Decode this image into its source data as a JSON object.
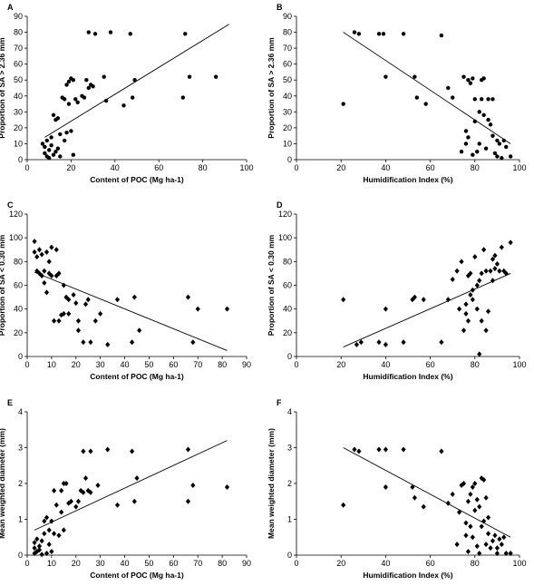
{
  "chart_data": [
    {
      "panel": "A",
      "type": "scatter",
      "xlabel": "Content of POC (Mg ha-1)",
      "ylabel": "Proportion of SA > 2.36 mm",
      "xlim": [
        0,
        100
      ],
      "ylim": [
        0,
        90
      ],
      "xticks": [
        0,
        20,
        40,
        60,
        80,
        100
      ],
      "yticks": [
        0,
        10,
        20,
        30,
        40,
        50,
        60,
        70,
        80,
        90
      ],
      "trendline": [
        [
          8,
          14
        ],
        [
          92,
          85
        ]
      ],
      "points": [
        [
          7,
          10
        ],
        [
          8,
          4
        ],
        [
          8,
          8
        ],
        [
          9,
          2
        ],
        [
          9,
          12
        ],
        [
          10,
          6
        ],
        [
          10,
          1
        ],
        [
          11,
          14
        ],
        [
          11,
          9
        ],
        [
          12,
          28
        ],
        [
          12,
          3
        ],
        [
          13,
          25
        ],
        [
          13,
          5
        ],
        [
          14,
          26
        ],
        [
          14,
          7
        ],
        [
          15,
          16
        ],
        [
          15,
          2
        ],
        [
          16,
          39
        ],
        [
          17,
          12
        ],
        [
          17,
          38
        ],
        [
          18,
          17
        ],
        [
          18,
          47
        ],
        [
          19,
          49
        ],
        [
          19,
          35
        ],
        [
          20,
          51
        ],
        [
          20,
          18
        ],
        [
          21,
          50
        ],
        [
          21,
          3
        ],
        [
          22,
          38
        ],
        [
          23,
          36
        ],
        [
          25,
          40
        ],
        [
          26,
          39
        ],
        [
          27,
          50
        ],
        [
          28,
          45
        ],
        [
          28,
          80
        ],
        [
          29,
          47
        ],
        [
          30,
          46
        ],
        [
          31,
          79
        ],
        [
          35,
          52
        ],
        [
          36,
          37
        ],
        [
          38,
          80
        ],
        [
          44,
          34
        ],
        [
          47,
          79
        ],
        [
          48,
          39
        ],
        [
          49,
          50
        ],
        [
          71,
          39
        ],
        [
          72,
          79
        ],
        [
          74,
          52
        ],
        [
          86,
          52
        ]
      ],
      "marker": "circle"
    },
    {
      "panel": "B",
      "type": "scatter",
      "xlabel": "Humidification Index (%)",
      "ylabel": "Proportion of SA > 2.36 mm",
      "xlim": [
        0,
        100
      ],
      "ylim": [
        0,
        90
      ],
      "xticks": [
        0,
        20,
        40,
        60,
        80,
        100
      ],
      "yticks": [
        0,
        10,
        20,
        30,
        40,
        50,
        60,
        70,
        80,
        90
      ],
      "trendline": [
        [
          21,
          80
        ],
        [
          96,
          10
        ]
      ],
      "points": [
        [
          21,
          35
        ],
        [
          26,
          80
        ],
        [
          28,
          79
        ],
        [
          37,
          79
        ],
        [
          39,
          79
        ],
        [
          40,
          52
        ],
        [
          48,
          79
        ],
        [
          53,
          52
        ],
        [
          54,
          39
        ],
        [
          58,
          35
        ],
        [
          65,
          78
        ],
        [
          68,
          45
        ],
        [
          70,
          39
        ],
        [
          74,
          5
        ],
        [
          75,
          52
        ],
        [
          76,
          18
        ],
        [
          76,
          10
        ],
        [
          77,
          50
        ],
        [
          77,
          14
        ],
        [
          78,
          48
        ],
        [
          79,
          51
        ],
        [
          79,
          3
        ],
        [
          80,
          24
        ],
        [
          80,
          38
        ],
        [
          81,
          5
        ],
        [
          82,
          10
        ],
        [
          82,
          30
        ],
        [
          83,
          50
        ],
        [
          83,
          38
        ],
        [
          84,
          51
        ],
        [
          84,
          28
        ],
        [
          85,
          7
        ],
        [
          86,
          25
        ],
        [
          86,
          38
        ],
        [
          87,
          22
        ],
        [
          88,
          15
        ],
        [
          88,
          38
        ],
        [
          89,
          4
        ],
        [
          90,
          12
        ],
        [
          90,
          2
        ],
        [
          91,
          10
        ],
        [
          92,
          1
        ],
        [
          93,
          12
        ],
        [
          94,
          8
        ],
        [
          96,
          2
        ]
      ],
      "marker": "circle"
    },
    {
      "panel": "C",
      "type": "scatter",
      "xlabel": "Content of POC (Mg ha-1)",
      "ylabel": "Proportion of SA < 0.30 mm",
      "xlim": [
        0,
        90
      ],
      "ylim": [
        0,
        120
      ],
      "xticks": [
        0,
        10,
        20,
        30,
        40,
        50,
        60,
        70,
        80,
        90
      ],
      "yticks": [
        0,
        20,
        40,
        60,
        80,
        100,
        120
      ],
      "trendline": [
        [
          3,
          71
        ],
        [
          82,
          5
        ]
      ],
      "points": [
        [
          3,
          97
        ],
        [
          3,
          88
        ],
        [
          4,
          72
        ],
        [
          4,
          84
        ],
        [
          5,
          70
        ],
        [
          5,
          90
        ],
        [
          6,
          86
        ],
        [
          6,
          68
        ],
        [
          7,
          72
        ],
        [
          7,
          62
        ],
        [
          8,
          88
        ],
        [
          8,
          54
        ],
        [
          9,
          80
        ],
        [
          9,
          70
        ],
        [
          10,
          68
        ],
        [
          10,
          92
        ],
        [
          11,
          30
        ],
        [
          12,
          90
        ],
        [
          12,
          68
        ],
        [
          13,
          70
        ],
        [
          13,
          30
        ],
        [
          14,
          35
        ],
        [
          15,
          60
        ],
        [
          15,
          36
        ],
        [
          16,
          50
        ],
        [
          17,
          36
        ],
        [
          17,
          48
        ],
        [
          19,
          52
        ],
        [
          20,
          45
        ],
        [
          21,
          22
        ],
        [
          21,
          30
        ],
        [
          23,
          12
        ],
        [
          24,
          44
        ],
        [
          25,
          48
        ],
        [
          26,
          12
        ],
        [
          28,
          30
        ],
        [
          30,
          36
        ],
        [
          33,
          10
        ],
        [
          37,
          48
        ],
        [
          43,
          12
        ],
        [
          44,
          50
        ],
        [
          46,
          22
        ],
        [
          66,
          50
        ],
        [
          68,
          12
        ],
        [
          70,
          40
        ],
        [
          82,
          40
        ]
      ],
      "marker": "diamond"
    },
    {
      "panel": "D",
      "type": "scatter",
      "xlabel": "Humidification Index (%)",
      "ylabel": "Proportion of SA < 0.30 mm",
      "xlim": [
        0,
        100
      ],
      "ylim": [
        0,
        120
      ],
      "xticks": [
        0,
        20,
        40,
        60,
        80,
        100
      ],
      "yticks": [
        0,
        20,
        40,
        60,
        80,
        100,
        120
      ],
      "trendline": [
        [
          21,
          8
        ],
        [
          96,
          70
        ]
      ],
      "points": [
        [
          21,
          48
        ],
        [
          27,
          10
        ],
        [
          29,
          12
        ],
        [
          37,
          12
        ],
        [
          40,
          10
        ],
        [
          40,
          40
        ],
        [
          48,
          12
        ],
        [
          52,
          48
        ],
        [
          53,
          50
        ],
        [
          57,
          48
        ],
        [
          65,
          12
        ],
        [
          68,
          48
        ],
        [
          70,
          65
        ],
        [
          72,
          72
        ],
        [
          73,
          40
        ],
        [
          74,
          80
        ],
        [
          75,
          22
        ],
        [
          76,
          44
        ],
        [
          76,
          36
        ],
        [
          77,
          30
        ],
        [
          77,
          68
        ],
        [
          78,
          70
        ],
        [
          78,
          52
        ],
        [
          79,
          56
        ],
        [
          79,
          48
        ],
        [
          80,
          84
        ],
        [
          81,
          40
        ],
        [
          81,
          60
        ],
        [
          82,
          64
        ],
        [
          82,
          2
        ],
        [
          83,
          30
        ],
        [
          83,
          70
        ],
        [
          84,
          90
        ],
        [
          85,
          72
        ],
        [
          85,
          22
        ],
        [
          86,
          38
        ],
        [
          87,
          72
        ],
        [
          88,
          64
        ],
        [
          88,
          82
        ],
        [
          89,
          85
        ],
        [
          89,
          74
        ],
        [
          90,
          78
        ],
        [
          91,
          72
        ],
        [
          92,
          92
        ],
        [
          93,
          72
        ],
        [
          94,
          70
        ],
        [
          96,
          96
        ]
      ],
      "marker": "diamond"
    },
    {
      "panel": "E",
      "type": "scatter",
      "xlabel": "Content of POC (Mg ha-1)",
      "ylabel": "Mean weighted diameter (mm)",
      "xlim": [
        0,
        90
      ],
      "ylim": [
        0,
        4
      ],
      "xticks": [
        0,
        10,
        20,
        30,
        40,
        50,
        60,
        70,
        80,
        90
      ],
      "yticks": [
        0,
        1,
        2,
        3,
        4
      ],
      "trendline": [
        [
          3,
          0.7
        ],
        [
          82,
          3.2
        ]
      ],
      "points": [
        [
          3,
          0.05
        ],
        [
          3,
          0.2
        ],
        [
          3,
          0.35
        ],
        [
          4,
          0.1
        ],
        [
          4,
          0.45
        ],
        [
          5,
          0.25
        ],
        [
          5,
          0.15
        ],
        [
          6,
          0.4
        ],
        [
          6,
          0.02
        ],
        [
          7,
          0.95
        ],
        [
          7,
          0.6
        ],
        [
          8,
          1.05
        ],
        [
          8,
          0.05
        ],
        [
          9,
          0.7
        ],
        [
          9,
          0.3
        ],
        [
          10,
          0.95
        ],
        [
          10,
          0.1
        ],
        [
          11,
          1.8
        ],
        [
          11,
          0.6
        ],
        [
          12,
          1.4
        ],
        [
          13,
          0.55
        ],
        [
          14,
          1.8
        ],
        [
          14,
          1.2
        ],
        [
          15,
          2.0
        ],
        [
          15,
          0.7
        ],
        [
          16,
          2.0
        ],
        [
          17,
          1.45
        ],
        [
          18,
          1.5
        ],
        [
          20,
          1.35
        ],
        [
          21,
          1.5
        ],
        [
          22,
          1.8
        ],
        [
          23,
          1.75
        ],
        [
          23,
          2.9
        ],
        [
          24,
          2.15
        ],
        [
          25,
          1.8
        ],
        [
          26,
          2.9
        ],
        [
          26,
          1.75
        ],
        [
          29,
          1.95
        ],
        [
          33,
          2.95
        ],
        [
          37,
          1.4
        ],
        [
          43,
          2.9
        ],
        [
          44,
          1.5
        ],
        [
          45,
          2.15
        ],
        [
          66,
          1.5
        ],
        [
          66,
          2.95
        ],
        [
          68,
          1.95
        ],
        [
          82,
          1.9
        ]
      ],
      "marker": "diamond"
    },
    {
      "panel": "F",
      "type": "scatter",
      "xlabel": "Humidification Index (%)",
      "ylabel": "Mean weighted diameter (mm)",
      "xlim": [
        0,
        100
      ],
      "ylim": [
        0,
        4
      ],
      "xticks": [
        0,
        20,
        40,
        60,
        80,
        100
      ],
      "yticks": [
        0,
        1,
        2,
        3,
        4
      ],
      "trendline": [
        [
          21,
          3.0
        ],
        [
          96,
          0.5
        ]
      ],
      "points": [
        [
          21,
          1.4
        ],
        [
          26,
          2.95
        ],
        [
          28,
          2.9
        ],
        [
          37,
          2.95
        ],
        [
          40,
          2.95
        ],
        [
          40,
          1.9
        ],
        [
          48,
          2.95
        ],
        [
          52,
          1.9
        ],
        [
          53,
          1.6
        ],
        [
          57,
          1.35
        ],
        [
          65,
          2.9
        ],
        [
          68,
          1.45
        ],
        [
          70,
          1.7
        ],
        [
          72,
          0.3
        ],
        [
          73,
          1.2
        ],
        [
          74,
          1.95
        ],
        [
          75,
          2.0
        ],
        [
          76,
          0.9
        ],
        [
          76,
          0.55
        ],
        [
          77,
          0.1
        ],
        [
          77,
          1.5
        ],
        [
          78,
          1.7
        ],
        [
          78,
          0.8
        ],
        [
          79,
          1.9
        ],
        [
          79,
          0.5
        ],
        [
          80,
          2.0
        ],
        [
          80,
          1.25
        ],
        [
          81,
          1.55
        ],
        [
          81,
          0.25
        ],
        [
          82,
          0.05
        ],
        [
          82,
          1.35
        ],
        [
          83,
          2.15
        ],
        [
          83,
          0.8
        ],
        [
          84,
          2.1
        ],
        [
          84,
          0.95
        ],
        [
          85,
          0.3
        ],
        [
          85,
          1.6
        ],
        [
          86,
          0.6
        ],
        [
          86,
          1.05
        ],
        [
          87,
          0.2
        ],
        [
          88,
          0.4
        ],
        [
          89,
          0.55
        ],
        [
          90,
          0.2
        ],
        [
          90,
          0.05
        ],
        [
          91,
          0.45
        ],
        [
          92,
          0.3
        ],
        [
          93,
          0.5
        ],
        [
          94,
          0.05
        ],
        [
          96,
          0.05
        ]
      ],
      "marker": "diamond"
    }
  ]
}
